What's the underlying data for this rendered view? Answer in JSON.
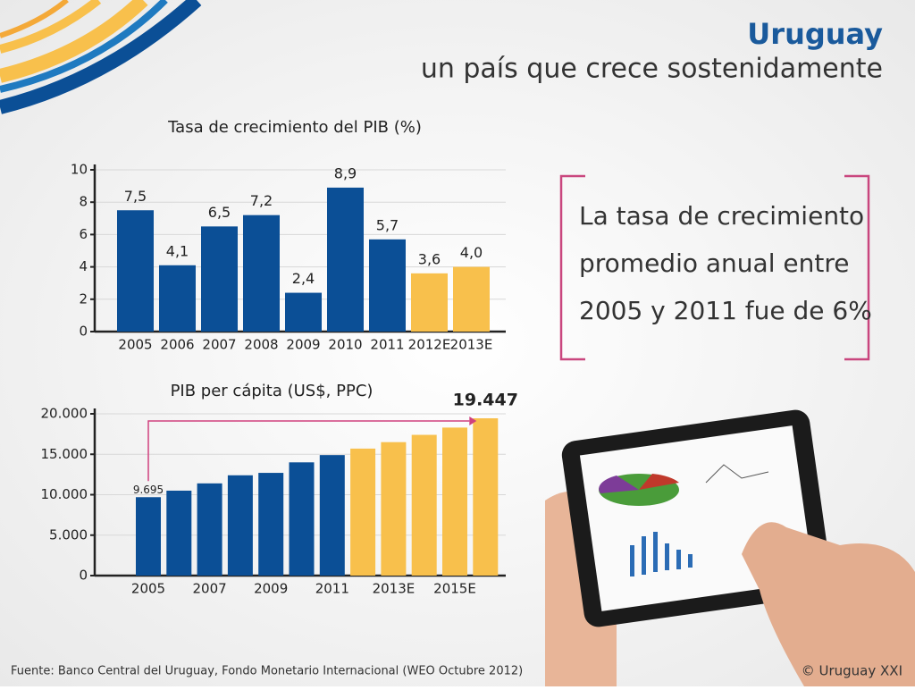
{
  "header": {
    "title": "Uruguay",
    "subtitle": "un país que crece sostenidamente"
  },
  "callout": {
    "lines": [
      "La tasa de crecimiento",
      "promedio anual entre",
      "2005 y 2011 fue de 6%"
    ]
  },
  "source": "Fuente:  Banco Central del Uruguay, Fondo Monetario Internacional (WEO Octubre 2012)",
  "copyright": "© Uruguay XXI",
  "chart_data": [
    {
      "type": "bar",
      "title": "Tasa de crecimiento del PIB (%)",
      "categories": [
        "2005",
        "2006",
        "2007",
        "2008",
        "2009",
        "2010",
        "2011",
        "2012E",
        "2013E"
      ],
      "values": [
        7.5,
        4.1,
        6.5,
        7.2,
        2.4,
        8.9,
        5.7,
        3.6,
        4.0
      ],
      "value_labels": [
        "7,5",
        "4,1",
        "6,5",
        "7,2",
        "2,4",
        "8,9",
        "5,7",
        "3,6",
        "4,0"
      ],
      "colors": [
        "#0b4f96",
        "#0b4f96",
        "#0b4f96",
        "#0b4f96",
        "#0b4f96",
        "#0b4f96",
        "#0b4f96",
        "#f8c04c",
        "#f8c04c"
      ],
      "ylim": [
        0,
        10
      ],
      "yticks": [
        0,
        2,
        4,
        6,
        8,
        10
      ],
      "grid": true
    },
    {
      "type": "bar",
      "title": "PIB per cápita (US$, PPC)",
      "categories": [
        "2005",
        null,
        "2007",
        null,
        "2009",
        null,
        "2011",
        null,
        "2013E",
        null,
        "2015E",
        null
      ],
      "values": [
        9695,
        10500,
        11400,
        12400,
        12700,
        14000,
        14900,
        15700,
        16500,
        17400,
        18300,
        19447
      ],
      "value_labels": [
        "9.695",
        null,
        null,
        null,
        null,
        null,
        null,
        null,
        null,
        null,
        null,
        "19.447"
      ],
      "colors": [
        "#0b4f96",
        "#0b4f96",
        "#0b4f96",
        "#0b4f96",
        "#0b4f96",
        "#0b4f96",
        "#0b4f96",
        "#f8c04c",
        "#f8c04c",
        "#f8c04c",
        "#f8c04c",
        "#f8c04c"
      ],
      "ylim": [
        0,
        20000
      ],
      "yticks": [
        0,
        {
          "value": 5000,
          "label": "5.000"
        },
        {
          "value": 10000,
          "label": "10.000"
        },
        {
          "value": 15000,
          "label": "15.000"
        },
        {
          "value": 20000,
          "label": "20.000"
        }
      ],
      "grid": true
    }
  ]
}
